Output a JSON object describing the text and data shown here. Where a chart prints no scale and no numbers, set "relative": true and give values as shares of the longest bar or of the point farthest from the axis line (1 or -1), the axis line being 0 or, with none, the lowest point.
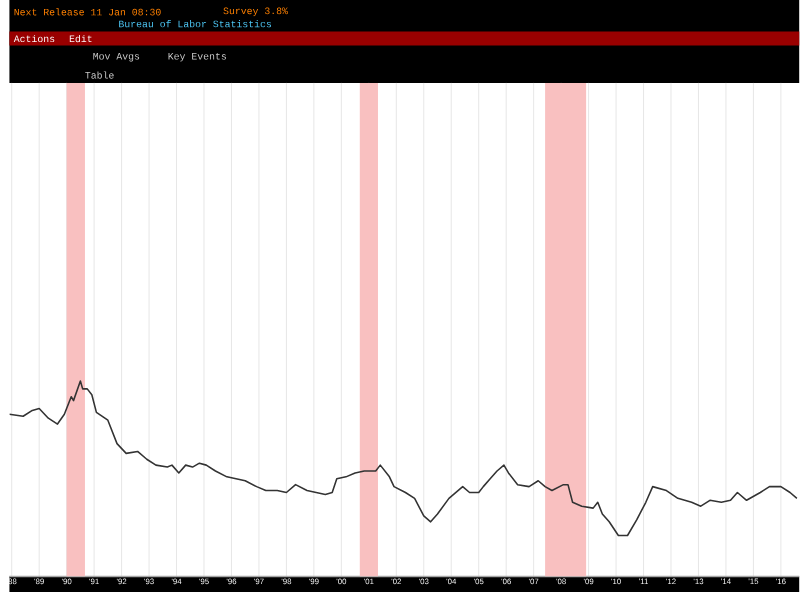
{
  "chart_data": {
    "type": "line",
    "relative": true,
    "grid": "x",
    "marker": "none",
    "line_style": "solid",
    "annotations": [
      "Next Release 11 Jan 08:30",
      "Survey 3.8%",
      "Bureau of Labor Statistics",
      "Actions",
      "Edit",
      "Mov Avgs",
      "Key Events",
      "Table"
    ],
    "xlim": [
      "1988-06",
      "2017-03"
    ],
    "xticks": [
      {
        "value": "1988-07",
        "label": "'88"
      },
      {
        "value": "1989-07",
        "label": "'89"
      },
      {
        "value": "1990-07",
        "label": "'90"
      },
      {
        "value": "1991-07",
        "label": "'91"
      },
      {
        "value": "1992-07",
        "label": "'92"
      },
      {
        "value": "1993-07",
        "label": "'93"
      },
      {
        "value": "1994-07",
        "label": "'94"
      },
      {
        "value": "1995-07",
        "label": "'95"
      },
      {
        "value": "1996-07",
        "label": "'96"
      },
      {
        "value": "1997-07",
        "label": "'97"
      },
      {
        "value": "1998-07",
        "label": "'98"
      },
      {
        "value": "1999-07",
        "label": "'99"
      },
      {
        "value": "2000-07",
        "label": "'00"
      },
      {
        "value": "2001-07",
        "label": "'01"
      },
      {
        "value": "2002-07",
        "label": "'02"
      },
      {
        "value": "2003-07",
        "label": "'03"
      },
      {
        "value": "2004-07",
        "label": "'04"
      },
      {
        "value": "2005-07",
        "label": "'05"
      },
      {
        "value": "2006-07",
        "label": "'06"
      },
      {
        "value": "2007-07",
        "label": "'07"
      },
      {
        "value": "2008-07",
        "label": "'08"
      },
      {
        "value": "2009-07",
        "label": "'09"
      },
      {
        "value": "2010-07",
        "label": "'10"
      },
      {
        "value": "2011-07",
        "label": "'11"
      },
      {
        "value": "2012-07",
        "label": "'12"
      },
      {
        "value": "2013-07",
        "label": "'13"
      },
      {
        "value": "2014-07",
        "label": "'14"
      },
      {
        "value": "2015-07",
        "label": "'15"
      },
      {
        "value": "2016-07",
        "label": "'16"
      }
    ],
    "bands": [
      {
        "axis": "x",
        "from": "1990-07",
        "to": "1991-03",
        "color": "#f9c0c0"
      },
      {
        "axis": "x",
        "from": "2001-03",
        "to": "2001-11",
        "color": "#f9c0c0"
      },
      {
        "axis": "x",
        "from": "2007-12",
        "to": "2009-06",
        "color": "#f9c0c0"
      }
    ],
    "series": [
      {
        "color": "#333333",
        "x": [
          "1988-06",
          "1988-12",
          "1989-04",
          "1989-07",
          "1989-11",
          "1990-03",
          "1990-06",
          "1990-09",
          "1990-10",
          "1991-01",
          "1991-02",
          "1991-04",
          "1991-06",
          "1991-08",
          "1992-01",
          "1992-05",
          "1992-09",
          "1993-02",
          "1993-06",
          "1993-10",
          "1994-03",
          "1994-05",
          "1994-08",
          "1994-11",
          "1995-02",
          "1995-05",
          "1995-08",
          "1995-12",
          "1996-05",
          "1996-09",
          "1997-01",
          "1997-06",
          "1997-10",
          "1998-03",
          "1998-07",
          "1998-11",
          "1999-04",
          "1999-08",
          "1999-12",
          "2000-03",
          "2000-05",
          "2000-09",
          "2001-01",
          "2001-05",
          "2001-10",
          "2001-12",
          "2002-04",
          "2002-06",
          "2002-11",
          "2003-03",
          "2003-07",
          "2003-10",
          "2004-01",
          "2004-06",
          "2004-12",
          "2005-03",
          "2005-07",
          "2005-09",
          "2005-12",
          "2006-03",
          "2006-06",
          "2006-08",
          "2006-12",
          "2007-05",
          "2007-09",
          "2007-12",
          "2008-03",
          "2008-08",
          "2008-10",
          "2008-12",
          "2009-04",
          "2009-09",
          "2009-11",
          "2010-01",
          "2010-04",
          "2010-08",
          "2010-12",
          "2011-04",
          "2011-08",
          "2011-11",
          "2012-05",
          "2012-10",
          "2013-04",
          "2013-08",
          "2013-12",
          "2014-05",
          "2014-09",
          "2014-12",
          "2015-04",
          "2015-10",
          "2016-02",
          "2016-07",
          "2016-11",
          "2017-02"
        ],
        "values": [
          0.83,
          0.82,
          0.85,
          0.86,
          0.81,
          0.78,
          0.83,
          0.92,
          0.9,
          1,
          0.96,
          0.96,
          0.93,
          0.84,
          0.8,
          0.68,
          0.63,
          0.64,
          0.6,
          0.57,
          0.56,
          0.57,
          0.53,
          0.57,
          0.56,
          0.58,
          0.57,
          0.54,
          0.51,
          0.5,
          0.49,
          0.46,
          0.44,
          0.44,
          0.43,
          0.47,
          0.44,
          0.43,
          0.42,
          0.43,
          0.5,
          0.51,
          0.53,
          0.54,
          0.54,
          0.57,
          0.51,
          0.46,
          0.43,
          0.4,
          0.31,
          0.28,
          0.32,
          0.4,
          0.46,
          0.43,
          0.43,
          0.46,
          0.5,
          0.54,
          0.57,
          0.53,
          0.47,
          0.46,
          0.49,
          0.46,
          0.44,
          0.47,
          0.47,
          0.38,
          0.36,
          0.35,
          0.38,
          0.32,
          0.28,
          0.21,
          0.21,
          0.29,
          0.38,
          0.46,
          0.44,
          0.4,
          0.38,
          0.36,
          0.39,
          0.38,
          0.39,
          0.43,
          0.39,
          0.43,
          0.46,
          0.46,
          0.43,
          0.4
        ]
      }
    ]
  }
}
